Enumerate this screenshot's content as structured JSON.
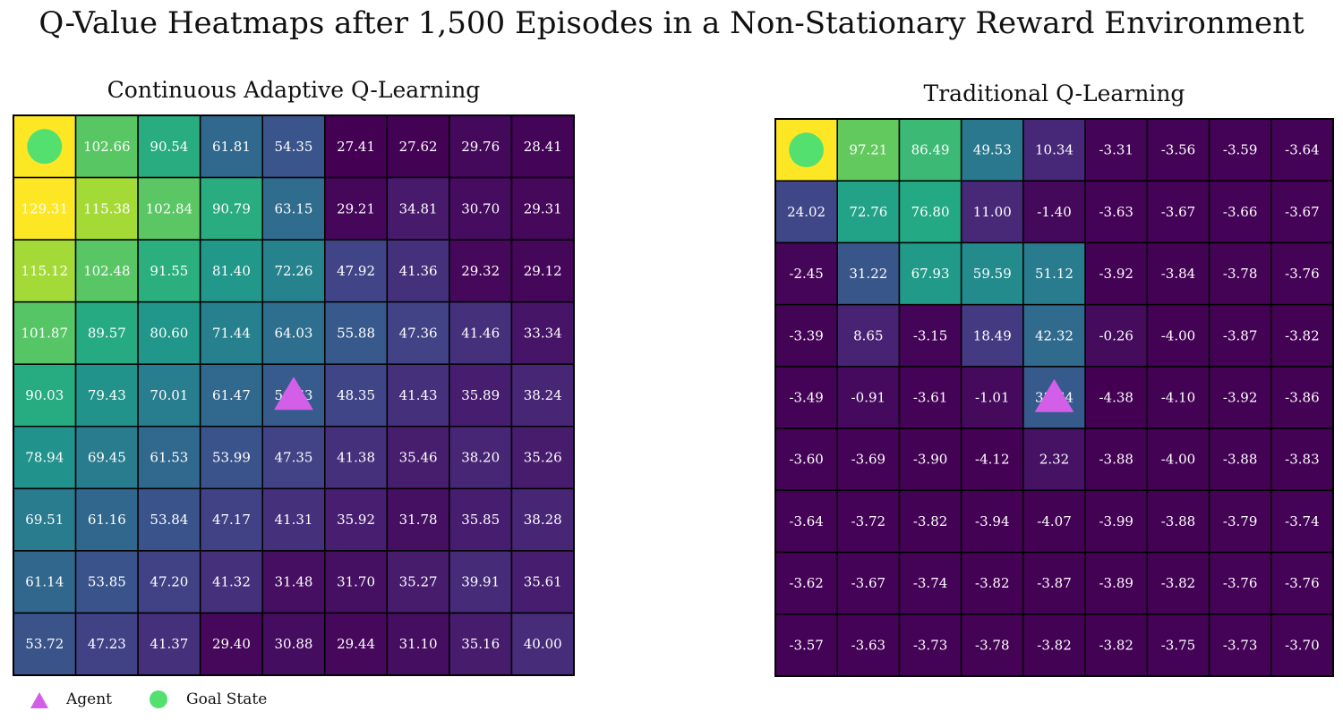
{
  "suptitle": "Q-Value Heatmaps after 1,500 Episodes in a Non-Stationary Reward Environment",
  "legend": {
    "agent_label": "Agent",
    "goal_label": "Goal State",
    "agent_color": "#d35fe8",
    "goal_color": "#54e06f"
  },
  "chart_data": [
    {
      "type": "heatmap",
      "title": "Continuous Adaptive Q-Learning",
      "colormap": "viridis",
      "vmin": 27.41,
      "vmax": 129.31,
      "goal_cell": [
        0,
        0
      ],
      "agent_cell": [
        4,
        4
      ],
      "grid": [
        [
          null,
          "102.66",
          "90.54",
          "61.81",
          "54.35",
          "27.41",
          "27.62",
          "29.76",
          "28.41"
        ],
        [
          "129.31",
          "115.38",
          "102.84",
          "90.79",
          "63.15",
          "29.21",
          "34.81",
          "30.70",
          "29.31"
        ],
        [
          "115.12",
          "102.48",
          "91.55",
          "81.40",
          "72.26",
          "47.92",
          "41.36",
          "29.32",
          "29.12"
        ],
        [
          "101.87",
          "89.57",
          "80.60",
          "71.44",
          "64.03",
          "55.88",
          "47.36",
          "41.46",
          "33.34"
        ],
        [
          "90.03",
          "79.43",
          "70.01",
          "61.47",
          "56.63",
          "48.35",
          "41.43",
          "35.89",
          "38.24"
        ],
        [
          "78.94",
          "69.45",
          "61.53",
          "53.99",
          "47.35",
          "41.38",
          "35.46",
          "38.20",
          "35.26"
        ],
        [
          "69.51",
          "61.16",
          "53.84",
          "47.17",
          "41.31",
          "35.92",
          "31.78",
          "35.85",
          "38.28"
        ],
        [
          "61.14",
          "53.85",
          "47.20",
          "41.32",
          "31.48",
          "31.70",
          "35.27",
          "39.91",
          "35.61"
        ],
        [
          "53.72",
          "47.23",
          "41.37",
          "29.40",
          "30.88",
          "29.44",
          "31.10",
          "35.16",
          "40.00"
        ]
      ]
    },
    {
      "type": "heatmap",
      "title": "Traditional Q-Learning",
      "colormap": "viridis",
      "vmin": -4.38,
      "vmax": 130,
      "goal_cell": [
        0,
        0
      ],
      "agent_cell": [
        4,
        4
      ],
      "grid": [
        [
          null,
          "97.21",
          "86.49",
          "49.53",
          "10.34",
          "-3.31",
          "-3.56",
          "-3.59",
          "-3.64"
        ],
        [
          "24.02",
          "72.76",
          "76.80",
          "11.00",
          "-1.40",
          "-3.63",
          "-3.67",
          "-3.66",
          "-3.67"
        ],
        [
          "-2.45",
          "31.22",
          "67.93",
          "59.59",
          "51.12",
          "-3.92",
          "-3.84",
          "-3.78",
          "-3.76"
        ],
        [
          "-3.39",
          "8.65",
          "-3.15",
          "18.49",
          "42.32",
          "-0.26",
          "-4.00",
          "-3.87",
          "-3.82"
        ],
        [
          "-3.49",
          "-0.91",
          "-3.61",
          "-1.01",
          "33.64",
          "-4.38",
          "-4.10",
          "-3.92",
          "-3.86"
        ],
        [
          "-3.60",
          "-3.69",
          "-3.90",
          "-4.12",
          "2.32",
          "-3.88",
          "-4.00",
          "-3.88",
          "-3.83"
        ],
        [
          "-3.64",
          "-3.72",
          "-3.82",
          "-3.94",
          "-4.07",
          "-3.99",
          "-3.88",
          "-3.79",
          "-3.74"
        ],
        [
          "-3.62",
          "-3.67",
          "-3.74",
          "-3.82",
          "-3.87",
          "-3.89",
          "-3.82",
          "-3.76",
          "-3.76"
        ],
        [
          "-3.57",
          "-3.63",
          "-3.73",
          "-3.78",
          "-3.82",
          "-3.82",
          "-3.75",
          "-3.73",
          "-3.70"
        ]
      ]
    }
  ]
}
